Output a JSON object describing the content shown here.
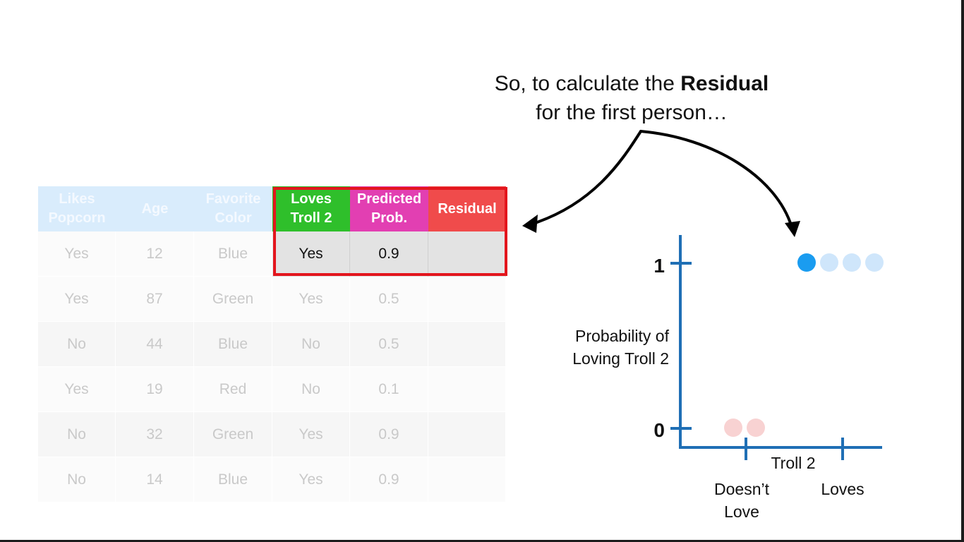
{
  "caption": {
    "line1_prefix": "So, to calculate the ",
    "line1_bold": "Residual",
    "line2": "for the first person…"
  },
  "table": {
    "headers": [
      "Likes Popcorn",
      "Age",
      "Favorite Color",
      "Loves Troll 2",
      "Predicted Prob.",
      "Residual"
    ],
    "header_colors": {
      "faded": "#d9ecfc",
      "loves": "#2fbf2b",
      "predicted": "#e23fb2",
      "residual": "#f04b4b"
    },
    "rows": [
      [
        "Yes",
        "12",
        "Blue",
        "Yes",
        "0.9",
        ""
      ],
      [
        "Yes",
        "87",
        "Green",
        "Yes",
        "0.5",
        ""
      ],
      [
        "No",
        "44",
        "Blue",
        "No",
        "0.5",
        ""
      ],
      [
        "Yes",
        "19",
        "Red",
        "No",
        "0.1",
        ""
      ],
      [
        "No",
        "32",
        "Green",
        "Yes",
        "0.9",
        ""
      ],
      [
        "No",
        "14",
        "Blue",
        "Yes",
        "0.9",
        ""
      ]
    ],
    "highlight_color": "#e3151d"
  },
  "plot": {
    "y_tick_1": "1",
    "y_tick_0": "0",
    "ylabel_line1": "Probability of",
    "ylabel_line2": "Loving Troll 2",
    "xlabel": "Troll 2",
    "x_tick_left_line1": "Doesn’t",
    "x_tick_left_line2": "Love",
    "x_tick_right": "Loves",
    "axis_color": "#1f6fb5",
    "points_loves": [
      {
        "category": "Loves",
        "y": 1,
        "state": "active",
        "color": "#1a9cf0"
      },
      {
        "category": "Loves",
        "y": 1,
        "state": "faded",
        "color": "#cfe6fb"
      },
      {
        "category": "Loves",
        "y": 1,
        "state": "faded",
        "color": "#cfe6fb"
      },
      {
        "category": "Loves",
        "y": 1,
        "state": "faded",
        "color": "#cfe6fb"
      }
    ],
    "points_doesnt": [
      {
        "category": "Doesn’t Love",
        "y": 0,
        "state": "faded",
        "color": "#f8d2d2"
      },
      {
        "category": "Doesn’t Love",
        "y": 0,
        "state": "faded",
        "color": "#f8d2d2"
      }
    ]
  }
}
